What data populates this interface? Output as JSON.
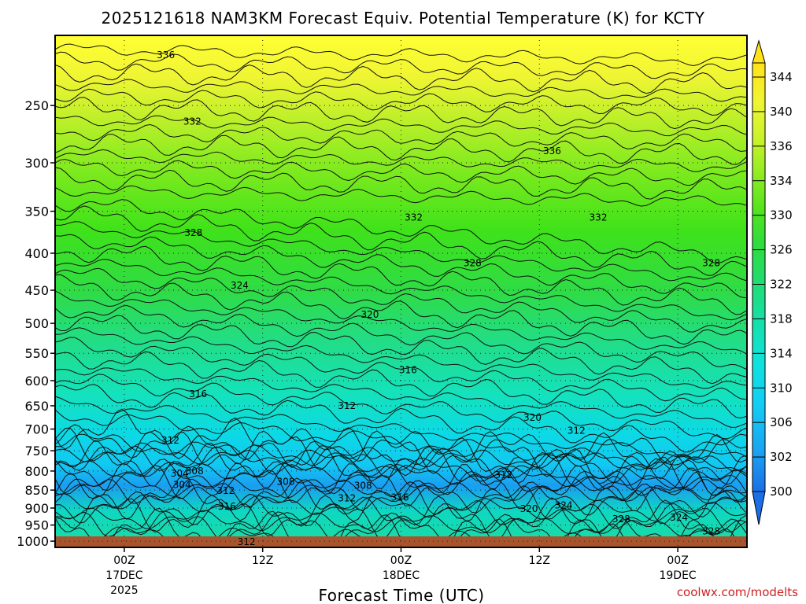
{
  "chart_data": {
    "type": "heatmap",
    "title": "2025121618 NAM3KM Forecast Equiv. Potential Temperature (K) for KCTY",
    "xlabel": "Forecast Time (UTC)",
    "ylabel": "",
    "x_ticks": [
      {
        "label": "00Z",
        "sub": "17DEC",
        "sub2": "2025",
        "hour": 0
      },
      {
        "label": "12Z",
        "sub": "",
        "sub2": "",
        "hour": 12
      },
      {
        "label": "00Z",
        "sub": "18DEC",
        "sub2": "",
        "hour": 24
      },
      {
        "label": "12Z",
        "sub": "",
        "sub2": "",
        "hour": 36
      },
      {
        "label": "00Z",
        "sub": "19DEC",
        "sub2": "",
        "hour": 48
      }
    ],
    "xlim": [
      -6,
      54
    ],
    "y_ticks": [
      "250",
      "300",
      "350",
      "400",
      "450",
      "500",
      "550",
      "600",
      "650",
      "700",
      "750",
      "800",
      "850",
      "900",
      "950",
      "1000"
    ],
    "ylim": [
      1020,
      200
    ],
    "y_scale": "log",
    "colorbar": {
      "labels": [
        "300",
        "302",
        "306",
        "310",
        "314",
        "318",
        "322",
        "326",
        "330",
        "334",
        "336",
        "340",
        "344"
      ],
      "min": 298,
      "max": 346
    },
    "contour_labels": [
      {
        "text": "336",
        "hour": 3.6,
        "p": 213
      },
      {
        "text": "332",
        "hour": 5.9,
        "p": 263
      },
      {
        "text": "336",
        "hour": 37.1,
        "p": 289
      },
      {
        "text": "332",
        "hour": 25.1,
        "p": 357
      },
      {
        "text": "332",
        "hour": 41.1,
        "p": 357
      },
      {
        "text": "328",
        "hour": 6.0,
        "p": 375
      },
      {
        "text": "328",
        "hour": 30.2,
        "p": 413
      },
      {
        "text": "328",
        "hour": 50.9,
        "p": 413
      },
      {
        "text": "324",
        "hour": 10.0,
        "p": 443
      },
      {
        "text": "320",
        "hour": 21.3,
        "p": 486
      },
      {
        "text": "316",
        "hour": 24.6,
        "p": 580
      },
      {
        "text": "316",
        "hour": 6.4,
        "p": 626
      },
      {
        "text": "312",
        "hour": 19.3,
        "p": 650
      },
      {
        "text": "320",
        "hour": 35.4,
        "p": 675
      },
      {
        "text": "312",
        "hour": 39.2,
        "p": 703
      },
      {
        "text": "312",
        "hour": 4.0,
        "p": 726
      },
      {
        "text": "304",
        "hour": 4.8,
        "p": 806
      },
      {
        "text": "308",
        "hour": 6.1,
        "p": 800
      },
      {
        "text": "304",
        "hour": 5.0,
        "p": 836
      },
      {
        "text": "312",
        "hour": 8.8,
        "p": 852
      },
      {
        "text": "308",
        "hour": 14.0,
        "p": 828
      },
      {
        "text": "308",
        "hour": 20.7,
        "p": 838
      },
      {
        "text": "312",
        "hour": 19.3,
        "p": 872
      },
      {
        "text": "316",
        "hour": 23.9,
        "p": 870
      },
      {
        "text": "312",
        "hour": 32.9,
        "p": 810
      },
      {
        "text": "316",
        "hour": 8.9,
        "p": 895
      },
      {
        "text": "320",
        "hour": 35.1,
        "p": 902
      },
      {
        "text": "324",
        "hour": 38.1,
        "p": 892
      },
      {
        "text": "328",
        "hour": 43.1,
        "p": 932
      },
      {
        "text": "324",
        "hour": 48.1,
        "p": 928
      },
      {
        "text": "328",
        "hour": 50.9,
        "p": 969
      },
      {
        "text": "312",
        "hour": 10.6,
        "p": 1002
      }
    ]
  },
  "credit": "coolwx.com/modelts"
}
